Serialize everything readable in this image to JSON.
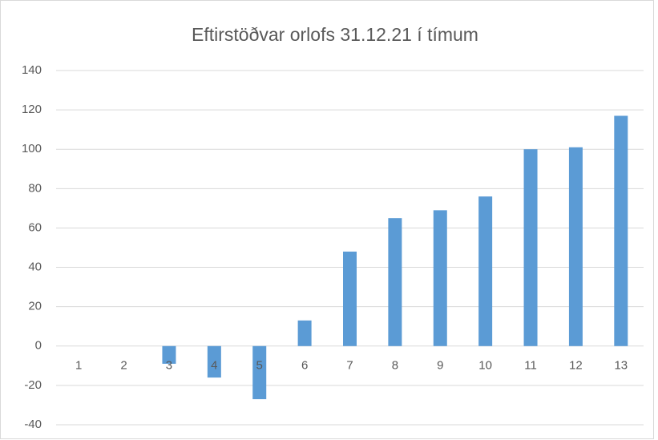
{
  "chart_data": {
    "type": "bar",
    "title": "Eftirstöðvar orlofs 31.12.21 í tímum",
    "categories": [
      "1",
      "2",
      "3",
      "4",
      "5",
      "6",
      "7",
      "8",
      "9",
      "10",
      "11",
      "12",
      "13"
    ],
    "values": [
      0,
      0,
      -9,
      -16,
      -27,
      13,
      48,
      65,
      69,
      76,
      100,
      101,
      117
    ],
    "color": "#5b9bd5",
    "ylim": [
      -40,
      140
    ],
    "yticks": [
      -40,
      -20,
      0,
      20,
      40,
      60,
      80,
      100,
      120,
      140
    ],
    "grid": true
  }
}
